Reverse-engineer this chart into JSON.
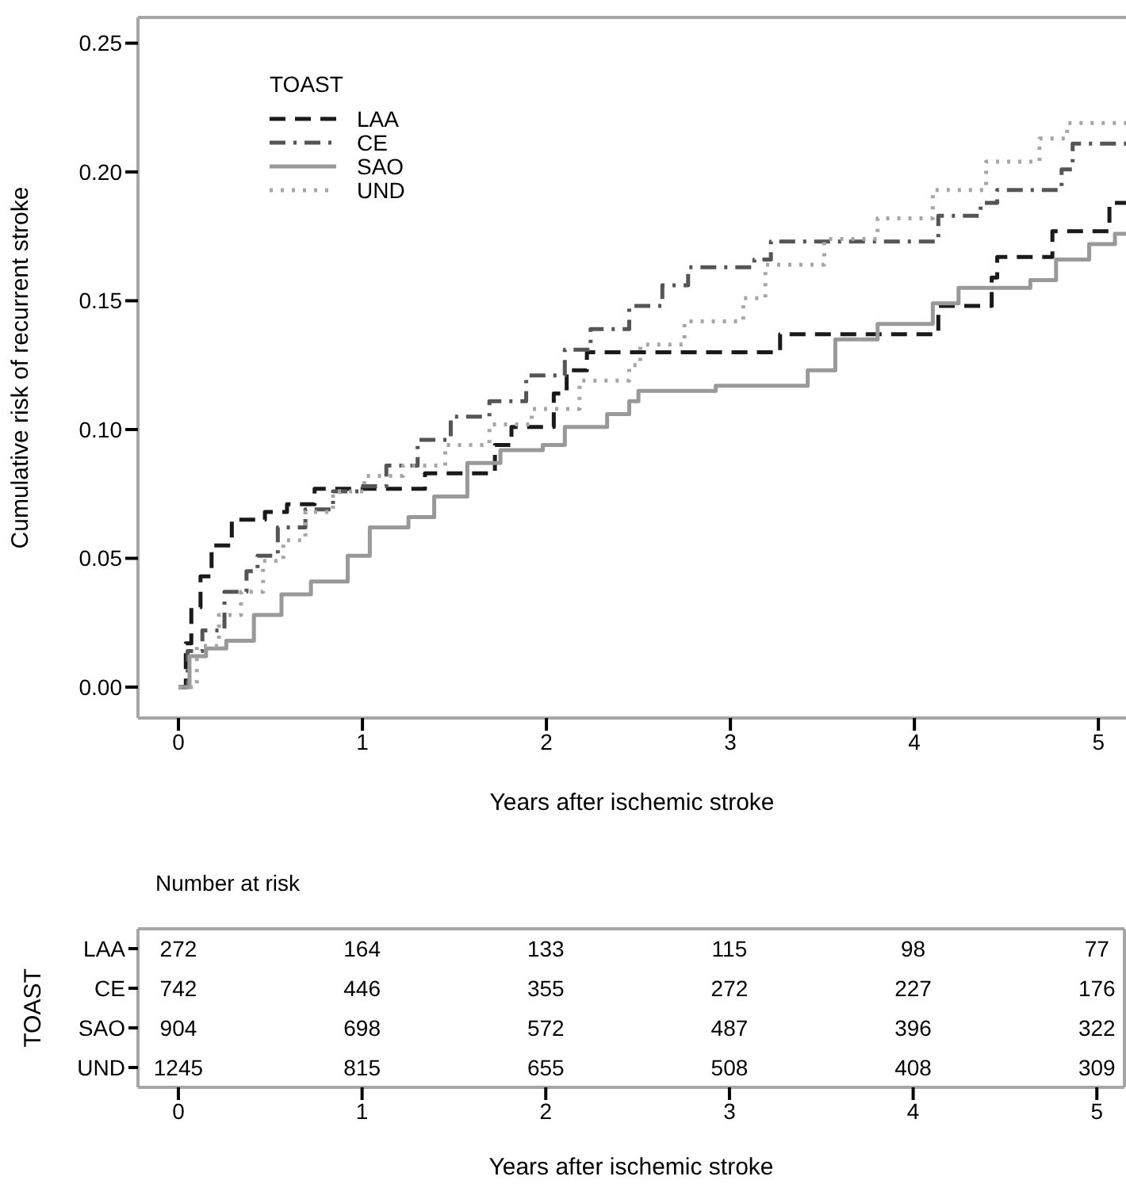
{
  "chart_data": [
    {
      "type": "step",
      "xlabel": "Years after ischemic stroke",
      "ylabel": "Cumulative risk of recurrent stroke",
      "legend_title": "TOAST",
      "legend": "top left",
      "grid": false,
      "xlim": [
        -0.22,
        5.15
      ],
      "xticks": [
        0,
        1,
        2,
        3,
        4,
        5
      ],
      "ylim": [
        -0.012,
        0.26
      ],
      "yticks": [
        {
          "value": 0,
          "label": "0.00"
        },
        0.05,
        {
          "value": 0.1,
          "label": "0.10"
        },
        0.15,
        {
          "value": 0.2,
          "label": "0.20"
        },
        0.25
      ],
      "series": [
        {
          "name": "LAA",
          "color": "#1a1a1a",
          "line_style": "dashed",
          "x": [
            0,
            0.04,
            0.07,
            0.12,
            0.18,
            0.29,
            0.47,
            0.59,
            0.74,
            1.34,
            1.72,
            1.81,
            2.04,
            2.11,
            2.22,
            3.27,
            4.13,
            4.42,
            4.45,
            4.75,
            5.06,
            5.15
          ],
          "values": [
            0,
            0.017,
            0.031,
            0.043,
            0.055,
            0.065,
            0.068,
            0.071,
            0.077,
            0.083,
            0.094,
            0.101,
            0.114,
            0.123,
            0.13,
            0.137,
            0.148,
            0.159,
            0.167,
            0.177,
            0.188,
            0.188
          ]
        },
        {
          "name": "CE",
          "color": "#555555",
          "line_style": "dashdot",
          "x": [
            0,
            0.05,
            0.13,
            0.25,
            0.37,
            0.43,
            0.54,
            0.69,
            0.84,
            0.98,
            1.13,
            1.3,
            1.48,
            1.69,
            1.89,
            2.1,
            2.24,
            2.45,
            2.63,
            2.77,
            3.13,
            3.22,
            4.13,
            4.36,
            4.45,
            4.8,
            4.86,
            5.15
          ],
          "values": [
            0,
            0.014,
            0.022,
            0.037,
            0.045,
            0.051,
            0.062,
            0.069,
            0.076,
            0.078,
            0.086,
            0.096,
            0.105,
            0.111,
            0.121,
            0.131,
            0.139,
            0.148,
            0.156,
            0.163,
            0.166,
            0.173,
            0.183,
            0.188,
            0.193,
            0.201,
            0.211,
            0.211
          ]
        },
        {
          "name": "SAO",
          "color": "#999999",
          "line_style": "solid",
          "x": [
            0,
            0.06,
            0.15,
            0.26,
            0.41,
            0.56,
            0.72,
            0.92,
            1.04,
            1.25,
            1.39,
            1.57,
            1.75,
            1.98,
            2.1,
            2.33,
            2.45,
            2.5,
            2.92,
            3.42,
            3.57,
            3.8,
            4.1,
            4.24,
            4.63,
            4.77,
            4.95,
            5.09,
            5.15
          ],
          "values": [
            0,
            0.012,
            0.015,
            0.018,
            0.028,
            0.036,
            0.041,
            0.051,
            0.062,
            0.066,
            0.074,
            0.087,
            0.092,
            0.094,
            0.101,
            0.106,
            0.111,
            0.115,
            0.117,
            0.123,
            0.135,
            0.141,
            0.149,
            0.155,
            0.158,
            0.166,
            0.172,
            0.176,
            0.176
          ]
        },
        {
          "name": "UND",
          "color": "#a6a6a6",
          "line_style": "dotted",
          "x": [
            0,
            0.1,
            0.22,
            0.34,
            0.46,
            0.57,
            0.69,
            0.84,
            1.01,
            1.22,
            1.45,
            1.69,
            1.92,
            2.18,
            2.45,
            2.51,
            2.75,
            3.07,
            3.19,
            3.51,
            3.8,
            4.1,
            4.39,
            4.68,
            4.83,
            5.15
          ],
          "values": [
            0,
            0.016,
            0.028,
            0.037,
            0.049,
            0.057,
            0.068,
            0.076,
            0.082,
            0.086,
            0.094,
            0.102,
            0.108,
            0.119,
            0.125,
            0.133,
            0.142,
            0.151,
            0.164,
            0.174,
            0.182,
            0.193,
            0.204,
            0.213,
            0.219,
            0.219
          ]
        }
      ]
    },
    {
      "type": "heatmap",
      "data_labels": true,
      "title": "Number at risk",
      "xlabel": "Years after ischemic stroke",
      "ylabel": "TOAST",
      "categories": [
        "0",
        "1",
        "2",
        "3",
        "4",
        "5"
      ],
      "y_categories": [
        "LAA",
        "CE",
        "SAO",
        "UND"
      ],
      "cells": [
        [
          272,
          164,
          133,
          115,
          98,
          77
        ],
        [
          742,
          446,
          355,
          272,
          227,
          176
        ],
        [
          904,
          698,
          572,
          487,
          396,
          322
        ],
        [
          1245,
          815,
          655,
          508,
          408,
          309
        ]
      ]
    }
  ]
}
